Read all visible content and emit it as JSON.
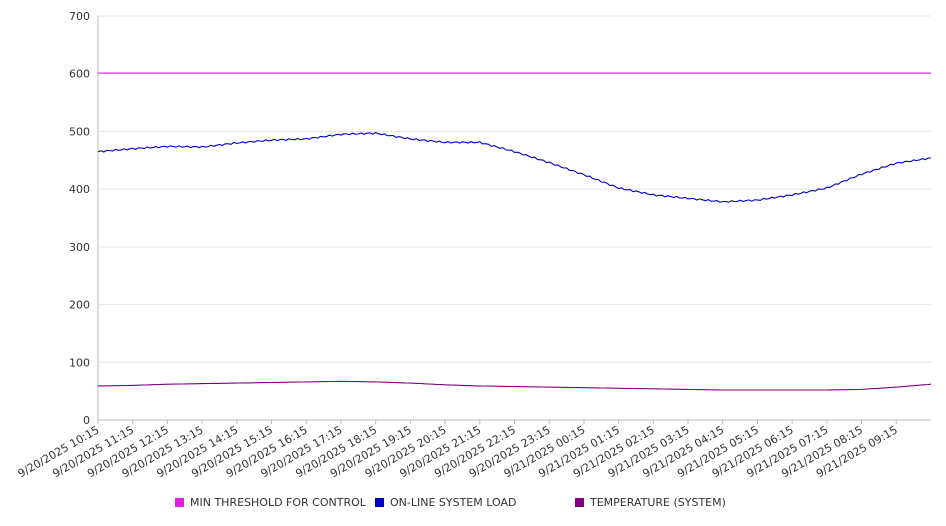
{
  "chart_data": {
    "type": "line",
    "x_ticks": [
      "9/20/2025 10:15",
      "9/20/2025 11:15",
      "9/20/2025 12:15",
      "9/20/2025 13:15",
      "9/20/2025 14:15",
      "9/20/2025 15:15",
      "9/20/2025 16:15",
      "9/20/2025 17:15",
      "9/20/2025 18:15",
      "9/20/2025 19:15",
      "9/20/2025 20:15",
      "9/20/2025 21:15",
      "9/20/2025 22:15",
      "9/20/2025 23:15",
      "9/21/2025 00:15",
      "9/21/2025 01:15",
      "9/21/2025 02:15",
      "9/21/2025 03:15",
      "9/21/2025 04:15",
      "9/21/2025 05:15",
      "9/21/2025 06:15",
      "9/21/2025 07:15",
      "9/21/2025 08:15",
      "9/21/2025 09:15"
    ],
    "x_range": [
      "9/20/2025 10:15",
      "9/21/2025 10:15"
    ],
    "y_ticks": [
      0,
      100,
      200,
      300,
      400,
      500,
      600,
      700
    ],
    "ylim": [
      0,
      700
    ],
    "grid": "horizontal",
    "legend_position": "bottom",
    "series": [
      {
        "name": "MIN THRESHOLD FOR CONTROL",
        "color": "#e020e0",
        "x": [
          "9/20/2025 10:15",
          "9/21/2025 10:15"
        ],
        "values": [
          601,
          601
        ]
      },
      {
        "name": "ON-LINE SYSTEM LOAD",
        "color": "#0000cc",
        "x": [
          "9/20/2025 10:15",
          "9/20/2025 11:15",
          "9/20/2025 12:15",
          "9/20/2025 13:15",
          "9/20/2025 14:15",
          "9/20/2025 15:15",
          "9/20/2025 16:15",
          "9/20/2025 17:15",
          "9/20/2025 18:15",
          "9/20/2025 19:15",
          "9/20/2025 20:15",
          "9/20/2025 21:15",
          "9/20/2025 22:15",
          "9/20/2025 23:15",
          "9/21/2025 00:15",
          "9/21/2025 01:15",
          "9/21/2025 02:15",
          "9/21/2025 03:15",
          "9/21/2025 04:15",
          "9/21/2025 05:15",
          "9/21/2025 06:15",
          "9/21/2025 07:15",
          "9/21/2025 08:15",
          "9/21/2025 09:15",
          "9/21/2025 10:15"
        ],
        "values": [
          465,
          470,
          474,
          473,
          480,
          485,
          487,
          495,
          497,
          487,
          481,
          481,
          465,
          446,
          425,
          402,
          390,
          384,
          378,
          381,
          390,
          402,
          426,
          445,
          454
        ]
      },
      {
        "name": "TEMPERATURE (SYSTEM)",
        "color": "#800080",
        "x": [
          "9/20/2025 10:15",
          "9/20/2025 11:15",
          "9/20/2025 12:15",
          "9/20/2025 13:15",
          "9/20/2025 14:15",
          "9/20/2025 15:15",
          "9/20/2025 16:15",
          "9/20/2025 17:15",
          "9/20/2025 18:15",
          "9/20/2025 19:15",
          "9/20/2025 20:15",
          "9/20/2025 21:15",
          "9/20/2025 22:15",
          "9/20/2025 23:15",
          "9/21/2025 00:15",
          "9/21/2025 01:15",
          "9/21/2025 02:15",
          "9/21/2025 03:15",
          "9/21/2025 04:15",
          "9/21/2025 05:15",
          "9/21/2025 06:15",
          "9/21/2025 07:15",
          "9/21/2025 08:15",
          "9/21/2025 09:15",
          "9/21/2025 10:15"
        ],
        "values": [
          59,
          60,
          62,
          63,
          64,
          65,
          66,
          67,
          66,
          64,
          61,
          59,
          58,
          57,
          56,
          55,
          54,
          53,
          52,
          52,
          52,
          52,
          53,
          57,
          62
        ]
      }
    ]
  }
}
